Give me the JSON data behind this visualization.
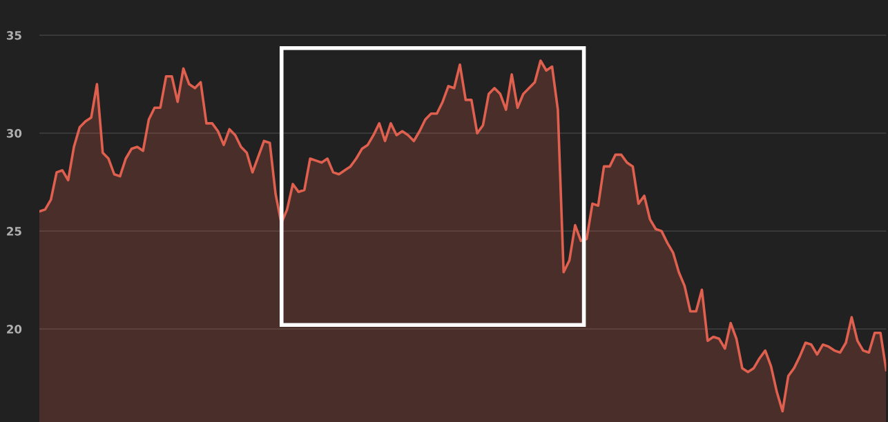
{
  "chart_data": {
    "type": "area",
    "ylim": [
      15.25,
      36.8
    ],
    "yticks": [
      20,
      25,
      30,
      35
    ],
    "grid": "y",
    "tick_labels": "y",
    "categories": [
      null,
      null,
      null,
      null,
      null,
      null,
      null,
      null,
      null,
      null,
      null,
      null,
      null,
      null,
      null,
      null,
      null,
      null,
      null,
      null,
      null,
      null,
      null,
      null,
      null,
      null,
      null,
      null,
      null,
      null,
      null,
      null,
      null,
      null,
      null,
      null,
      null,
      null,
      null,
      null,
      null,
      null,
      null,
      null,
      null,
      null,
      null,
      null,
      null,
      null,
      null,
      null,
      null,
      null,
      null,
      null,
      null,
      null,
      null,
      null,
      null,
      null,
      null,
      null,
      null,
      null,
      null,
      null,
      null,
      null,
      null,
      null,
      null,
      null,
      null,
      null,
      null,
      null,
      null,
      null,
      null,
      null,
      null,
      null,
      null,
      null,
      null,
      null,
      null,
      null,
      null,
      null,
      null,
      null,
      null,
      null,
      null,
      null,
      null,
      null,
      null,
      null,
      null,
      null,
      null,
      null,
      null,
      null,
      null,
      null,
      null,
      null,
      null,
      null,
      null,
      null,
      null,
      null,
      null,
      null,
      null,
      null,
      null,
      null,
      null,
      null,
      null,
      null,
      null,
      null,
      null,
      null,
      null,
      null,
      null,
      null,
      null,
      null,
      null,
      null,
      null,
      null,
      null,
      null,
      null,
      null,
      null,
      null
    ],
    "series": [
      {
        "color": "#e0604f",
        "values": [
          26.0,
          26.1,
          26.6,
          28.0,
          28.1,
          27.6,
          29.3,
          30.3,
          30.6,
          30.8,
          32.5,
          29.0,
          28.7,
          27.9,
          27.8,
          28.7,
          29.2,
          29.3,
          29.1,
          30.7,
          31.3,
          31.3,
          32.9,
          32.9,
          31.6,
          33.3,
          32.5,
          32.3,
          32.6,
          30.5,
          30.5,
          30.1,
          29.4,
          30.2,
          29.9,
          29.3,
          29.0,
          28.0,
          28.8,
          29.6,
          29.5,
          26.9,
          25.4,
          26.1,
          27.4,
          27.0,
          27.1,
          28.7,
          28.6,
          28.5,
          28.7,
          28.0,
          27.9,
          28.1,
          28.3,
          28.7,
          29.2,
          29.4,
          29.9,
          30.5,
          29.6,
          30.5,
          29.9,
          30.1,
          29.9,
          29.6,
          30.1,
          30.7,
          31.0,
          31.0,
          31.6,
          32.4,
          32.3,
          33.5,
          31.7,
          31.7,
          30.0,
          30.4,
          32.0,
          32.3,
          32.0,
          31.2,
          33.0,
          31.3,
          32.0,
          32.3,
          32.6,
          33.7,
          33.2,
          33.4,
          31.2,
          22.9,
          23.5,
          25.3,
          24.5,
          24.6,
          26.4,
          26.3,
          28.3,
          28.3,
          28.9,
          28.9,
          28.5,
          28.3,
          26.4,
          26.8,
          25.6,
          25.1,
          25.0,
          24.4,
          23.9,
          22.9,
          22.2,
          20.9,
          20.9,
          22.0,
          19.4,
          19.6,
          19.5,
          19.0,
          20.3,
          19.5,
          18.0,
          17.8,
          18.0,
          18.5,
          18.9,
          18.1,
          16.8,
          15.8,
          17.6,
          18.0,
          18.6,
          19.3,
          19.2,
          18.7,
          19.2,
          19.1,
          18.9,
          18.8,
          19.3,
          20.6,
          19.4,
          18.9,
          18.8,
          19.8,
          19.8,
          17.9
        ]
      }
    ]
  }
}
